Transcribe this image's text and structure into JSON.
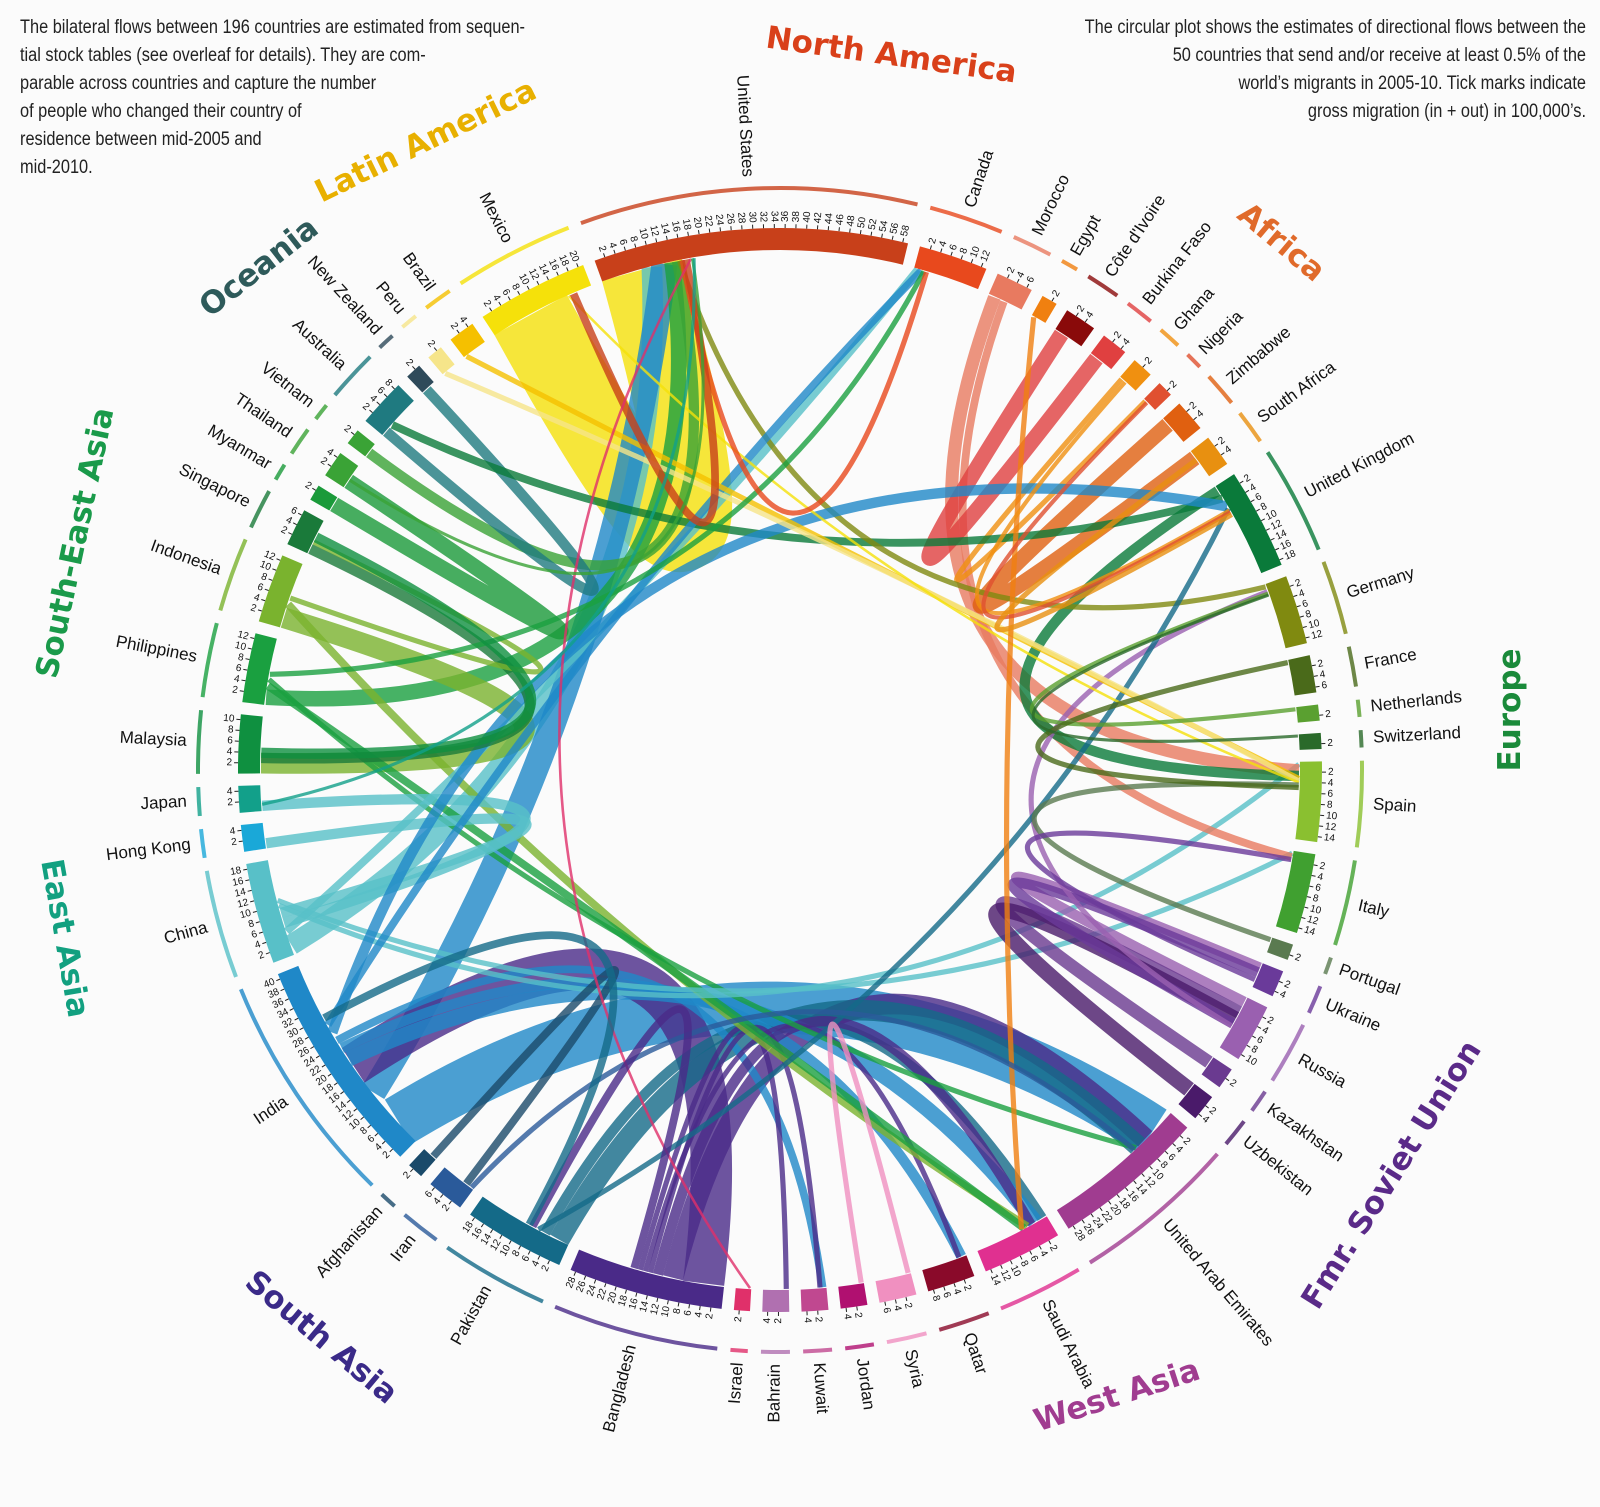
{
  "notes": {
    "left": [
      "The bilateral flows between 196 countries are estimated from sequen-",
      "tial stock tables (see overleaf for details). They are com-",
      "parable across countries and capture the number",
      "of people who changed their country of",
      "residence between mid-2005 and",
      "mid-2010."
    ],
    "right": [
      "The circular plot shows the estimates of directional flows between the",
      "50 countries that send and/or receive at least 0.5% of the",
      "world’s migrants in 2005-10. Tick marks indicate",
      "gross migration (in + out) in 100,000’s."
    ]
  },
  "regions": {
    "north_america": {
      "label": "North America",
      "color": "#d9401a"
    },
    "latin_america": {
      "label": "Latin America",
      "color": "#e8b000"
    },
    "oceania": {
      "label": "Oceania",
      "color": "#2e5a5a"
    },
    "south_east_asia": {
      "label": "South-East Asia",
      "color": "#1a9a4a"
    },
    "east_asia": {
      "label": "East Asia",
      "color": "#12a080"
    },
    "south_asia": {
      "label": "South Asia",
      "color": "#3a2a88"
    },
    "west_asia": {
      "label": "West Asia",
      "color": "#a03c90"
    },
    "fmr_soviet_union": {
      "label": "Fmr. Soviet Union",
      "color": "#5a2a88"
    },
    "europe": {
      "label": "Europe",
      "color": "#1a8a3a"
    },
    "africa": {
      "label": "Africa",
      "color": "#e06a2a"
    }
  },
  "countries": [
    {
      "name": "United States",
      "gross": 59,
      "color": "#c8401a"
    },
    {
      "name": "Canada",
      "gross": 13,
      "color": "#e8491d"
    },
    {
      "name": "Morocco",
      "gross": 7,
      "color": "#e87a60"
    },
    {
      "name": "Egypt",
      "gross": 3,
      "color": "#f08010"
    },
    {
      "name": "Côte d'Ivoire",
      "gross": 6,
      "color": "#8a0a0a"
    },
    {
      "name": "Burkina Faso",
      "gross": 5,
      "color": "#e04040"
    },
    {
      "name": "Ghana",
      "gross": 4,
      "color": "#f09010"
    },
    {
      "name": "Nigeria",
      "gross": 3,
      "color": "#e05030"
    },
    {
      "name": "Zimbabwe",
      "gross": 6,
      "color": "#e06010"
    },
    {
      "name": "South Africa",
      "gross": 6,
      "color": "#e89010"
    },
    {
      "name": "United Kingdom",
      "gross": 19,
      "color": "#0a7a3a"
    },
    {
      "name": "Germany",
      "gross": 13,
      "color": "#808a10"
    },
    {
      "name": "France",
      "gross": 7,
      "color": "#4a6a1a"
    },
    {
      "name": "Netherlands",
      "gross": 3,
      "color": "#5aa030"
    },
    {
      "name": "Switzerland",
      "gross": 3,
      "color": "#2a6a2a"
    },
    {
      "name": "Spain",
      "gross": 15,
      "color": "#8ac030"
    },
    {
      "name": "Italy",
      "gross": 15,
      "color": "#40a030"
    },
    {
      "name": "Portugal",
      "gross": 3,
      "color": "#5a7a50"
    },
    {
      "name": "Ukraine",
      "gross": 5,
      "color": "#6a3a9a"
    },
    {
      "name": "Russia",
      "gross": 11,
      "color": "#9a60b0"
    },
    {
      "name": "Kazakhstan",
      "gross": 4,
      "color": "#6a3a90"
    },
    {
      "name": "Uzbekistan",
      "gross": 5,
      "color": "#4a1a6a"
    },
    {
      "name": "United Arab Emirates",
      "gross": 29,
      "color": "#a03c90"
    },
    {
      "name": "Saudi Arabia",
      "gross": 15,
      "color": "#e03090"
    },
    {
      "name": "Qatar",
      "gross": 9,
      "color": "#8a0a2a"
    },
    {
      "name": "Syria",
      "gross": 7,
      "color": "#f090c0"
    },
    {
      "name": "Jordan",
      "gross": 5,
      "color": "#b01070"
    },
    {
      "name": "Kuwait",
      "gross": 5,
      "color": "#c04890"
    },
    {
      "name": "Bahrain",
      "gross": 5,
      "color": "#b070b0"
    },
    {
      "name": "Israel",
      "gross": 3,
      "color": "#e0306a"
    },
    {
      "name": "Bangladesh",
      "gross": 29,
      "color": "#4a2a88"
    },
    {
      "name": "Pakistan",
      "gross": 19,
      "color": "#146a88"
    },
    {
      "name": "Iran",
      "gross": 7,
      "color": "#2a5a9a"
    },
    {
      "name": "Afghanistan",
      "gross": 3,
      "color": "#1a4a6a"
    },
    {
      "name": "India",
      "gross": 41,
      "color": "#1f88c8"
    },
    {
      "name": "China",
      "gross": 19,
      "color": "#58c0c8"
    },
    {
      "name": "Hong Kong",
      "gross": 5,
      "color": "#1aa8d8"
    },
    {
      "name": "Japan",
      "gross": 5,
      "color": "#12a08a"
    },
    {
      "name": "Malaysia",
      "gross": 11,
      "color": "#0f9040"
    },
    {
      "name": "Philippines",
      "gross": 13,
      "color": "#1aa040"
    },
    {
      "name": "Indonesia",
      "gross": 13,
      "color": "#7ab32e"
    },
    {
      "name": "Singapore",
      "gross": 7,
      "color": "#1a7a3a"
    },
    {
      "name": "Myanmar",
      "gross": 3,
      "color": "#1a9a3a"
    },
    {
      "name": "Thailand",
      "gross": 5,
      "color": "#3aa336"
    },
    {
      "name": "Vietnam",
      "gross": 3,
      "color": "#3aa336"
    },
    {
      "name": "Australia",
      "gross": 9,
      "color": "#1f7a80"
    },
    {
      "name": "New Zealand",
      "gross": 3,
      "color": "#2e4a5a"
    },
    {
      "name": "Peru",
      "gross": 3,
      "color": "#f6e58a"
    },
    {
      "name": "Brazil",
      "gross": 5,
      "color": "#f5c000"
    },
    {
      "name": "Mexico",
      "gross": 21,
      "color": "#f5e10a"
    }
  ],
  "flows": [
    [
      "Mexico",
      "United States",
      16
    ],
    [
      "India",
      "United Arab Emirates",
      10
    ],
    [
      "China",
      "United States",
      4
    ],
    [
      "India",
      "United States",
      5
    ],
    [
      "Philippines",
      "United States",
      3
    ],
    [
      "Bangladesh",
      "India",
      8
    ],
    [
      "Bangladesh",
      "United Arab Emirates",
      4
    ],
    [
      "Pakistan",
      "United Arab Emirates",
      4
    ],
    [
      "Pakistan",
      "Saudi Arabia",
      2
    ],
    [
      "India",
      "Saudi Arabia",
      3
    ],
    [
      "India",
      "Qatar",
      2
    ],
    [
      "India",
      "Kuwait",
      1.5
    ],
    [
      "Bangladesh",
      "Saudi Arabia",
      2
    ],
    [
      "Bangladesh",
      "Kuwait",
      1
    ],
    [
      "Bangladesh",
      "Qatar",
      1
    ],
    [
      "Bangladesh",
      "Bahrain",
      1
    ],
    [
      "Indonesia",
      "Malaysia",
      4
    ],
    [
      "Indonesia",
      "Saudi Arabia",
      1.5
    ],
    [
      "Philippines",
      "Saudi Arabia",
      1.5
    ],
    [
      "Philippines",
      "United Arab Emirates",
      1
    ],
    [
      "China",
      "Canada",
      1.5
    ],
    [
      "China",
      "Japan",
      2
    ],
    [
      "China",
      "Hong Kong",
      2
    ],
    [
      "China",
      "Spain",
      1
    ],
    [
      "China",
      "Italy",
      1
    ],
    [
      "Vietnam",
      "United States",
      2
    ],
    [
      "Australia",
      "New Zealand",
      2
    ],
    [
      "Morocco",
      "Spain",
      2.5
    ],
    [
      "Morocco",
      "Italy",
      1.5
    ],
    [
      "Burkina Faso",
      "Côte d'Ivoire",
      3
    ],
    [
      "Zimbabwe",
      "South Africa",
      3
    ],
    [
      "Ghana",
      "Nigeria",
      1
    ],
    [
      "United Kingdom",
      "Spain",
      2
    ],
    [
      "United Kingdom",
      "Australia",
      1.5
    ],
    [
      "Germany",
      "United States",
      1
    ],
    [
      "Russia",
      "Ukraine",
      2
    ],
    [
      "Kazakhstan",
      "Russia",
      2.5
    ],
    [
      "Uzbekistan",
      "Russia",
      3
    ],
    [
      "Ukraine",
      "Russia",
      2
    ],
    [
      "Russia",
      "Germany",
      1
    ],
    [
      "India",
      "United Kingdom",
      2
    ],
    [
      "Pakistan",
      "United Kingdom",
      1
    ],
    [
      "India",
      "Canada",
      1.5
    ],
    [
      "Brazil",
      "Spain",
      1
    ],
    [
      "Peru",
      "Spain",
      1
    ],
    [
      "Mexico",
      "Spain",
      0.5
    ],
    [
      "Portugal",
      "Spain",
      1
    ],
    [
      "Egypt",
      "Saudi Arabia",
      1
    ],
    [
      "Syria",
      "Jordan",
      1
    ],
    [
      "Iran",
      "United Arab Emirates",
      1
    ],
    [
      "Afghanistan",
      "Iran",
      1.5
    ],
    [
      "Myanmar",
      "Thailand",
      3
    ],
    [
      "Singapore",
      "Malaysia",
      2
    ],
    [
      "Indonesia",
      "Singapore",
      1
    ],
    [
      "Philippines",
      "Canada",
      1
    ],
    [
      "Malaysia",
      "Singapore",
      2
    ],
    [
      "Canada",
      "United States",
      1
    ],
    [
      "United States",
      "Mexico",
      1.5
    ],
    [
      "Israel",
      "United States",
      0.5
    ],
    [
      "Ukraine",
      "Italy",
      1
    ],
    [
      "Bangladesh",
      "Pakistan",
      1.5
    ],
    [
      "Pakistan",
      "India",
      1.5
    ],
    [
      "Ghana",
      "United Kingdom",
      0.8
    ],
    [
      "Nigeria",
      "United Kingdom",
      0.8
    ],
    [
      "South Africa",
      "United Kingdom",
      1
    ],
    [
      "Netherlands",
      "Germany",
      0.8
    ],
    [
      "France",
      "Spain",
      1
    ],
    [
      "Switzerland",
      "Germany",
      0.6
    ],
    [
      "Thailand",
      "United States",
      0.6
    ],
    [
      "Japan",
      "United States",
      0.6
    ]
  ]
}
